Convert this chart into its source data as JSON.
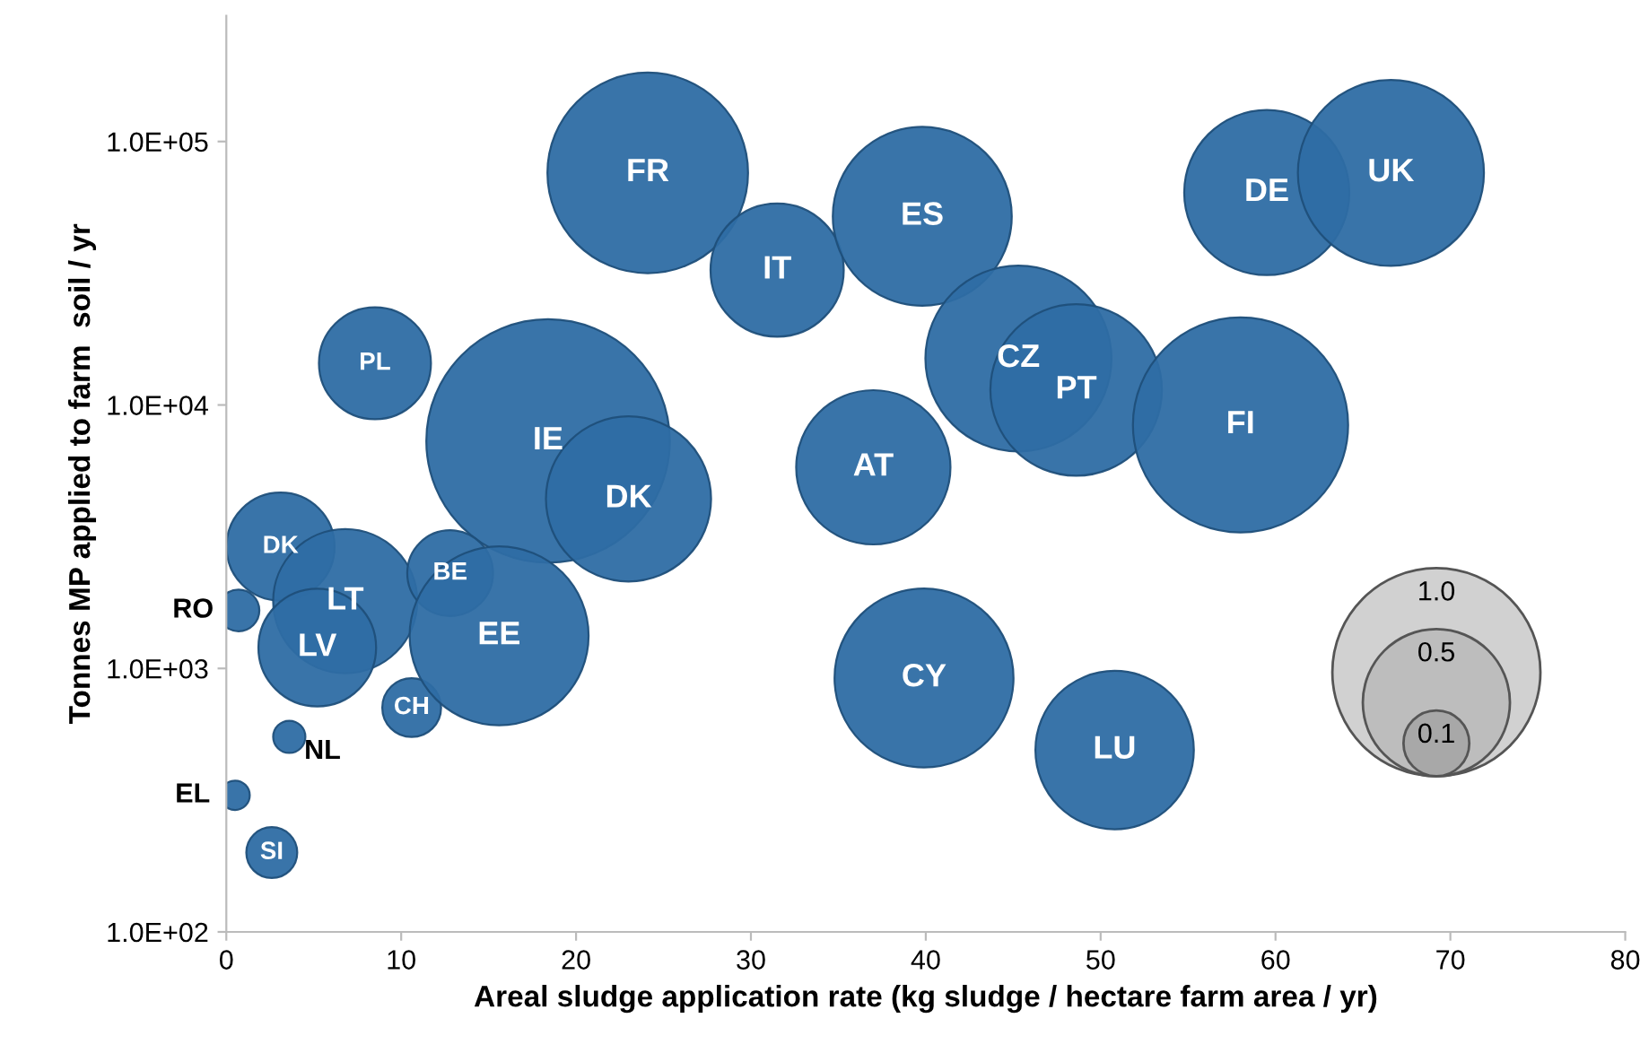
{
  "chart_data": {
    "type": "bubble",
    "xlabel": "Areal sludge application rate (kg sludge / hectare farm area / yr)",
    "ylabel": "Tonnes MP applied to farm  soil / yr",
    "log": "y",
    "xlim": [
      0,
      80
    ],
    "xticks": [
      0,
      10,
      20,
      30,
      40,
      50,
      60,
      70,
      80
    ],
    "ylim": [
      100,
      300000
    ],
    "yticks": [
      {
        "value": 100,
        "label": "1.0E+02"
      },
      {
        "value": 1000,
        "label": "1.0E+03"
      },
      {
        "value": 10000,
        "label": "1.0E+04"
      },
      {
        "value": 100000,
        "label": "1.0E+05"
      }
    ],
    "grid": false,
    "size_legend": [
      {
        "value": 1,
        "label": "1.0"
      },
      0.5,
      0.1
    ],
    "series": [
      {
        "color": "#2e6da4",
        "x": [
          24.1,
          31.5,
          39.8,
          59.5,
          66.6,
          8.5,
          45.3,
          48.6,
          58,
          18.4,
          23,
          37,
          3.1,
          6.8,
          12.8,
          0.7,
          5.2,
          10.6,
          15.6,
          39.9,
          50.8,
          3.6,
          0.5,
          2.6
        ],
        "values": [
          76000,
          32500,
          52000,
          64000,
          76000,
          14400,
          15000,
          11400,
          8400,
          7300,
          4400,
          5800,
          2900,
          1800,
          2300,
          1660,
          1200,
          710,
          1330,
          920,
          490,
          550,
          330,
          200
        ],
        "sizes": [
          0.93,
          0.41,
          0.74,
          0.63,
          0.8,
          0.29,
          0.8,
          0.68,
          1.07,
          1.37,
          0.63,
          0.55,
          0.27,
          0.48,
          0.17,
          0.04,
          0.32,
          0.08,
          0.74,
          0.74,
          0.58,
          0.024,
          0.02,
          0.06
        ]
      }
    ],
    "annotations": [
      {
        "text": "FR",
        "x": 24.1,
        "y": 76000
      },
      {
        "text": "IT",
        "x": 31.5,
        "y": 32500
      },
      {
        "text": "ES",
        "x": 39.8,
        "y": 52000
      },
      {
        "text": "DE",
        "x": 59.5,
        "y": 64000
      },
      {
        "text": "UK",
        "x": 66.6,
        "y": 76000
      },
      {
        "text": "PL",
        "x": 8.5,
        "y": 14400
      },
      {
        "text": "CZ",
        "x": 45.3,
        "y": 15000
      },
      {
        "text": "PT",
        "x": 48.6,
        "y": 11400
      },
      {
        "text": "FI",
        "x": 58,
        "y": 8400
      },
      {
        "text": "IE",
        "x": 18.4,
        "y": 7300
      },
      {
        "text": "DK",
        "x": 23,
        "y": 4400
      },
      {
        "text": "AT",
        "x": 37,
        "y": 5800
      },
      {
        "text": "DK",
        "x": 3.1,
        "y": 2900
      },
      {
        "text": "LT",
        "x": 6.8,
        "y": 1800
      },
      {
        "text": "BE",
        "x": 12.8,
        "y": 2300
      },
      {
        "text": "RO",
        "x": 0.7,
        "y": 1660
      },
      {
        "text": "LV",
        "x": 5.2,
        "y": 1200
      },
      {
        "text": "CH",
        "x": 10.6,
        "y": 710
      },
      {
        "text": "EE",
        "x": 15.6,
        "y": 1330
      },
      {
        "text": "CY",
        "x": 39.9,
        "y": 920
      },
      {
        "text": "LU",
        "x": 50.8,
        "y": 490
      },
      {
        "text": "NL",
        "x": 3.6,
        "y": 550
      },
      {
        "text": "EL",
        "x": 0.5,
        "y": 330
      },
      {
        "text": "SI",
        "x": 2.6,
        "y": 200
      }
    ]
  }
}
